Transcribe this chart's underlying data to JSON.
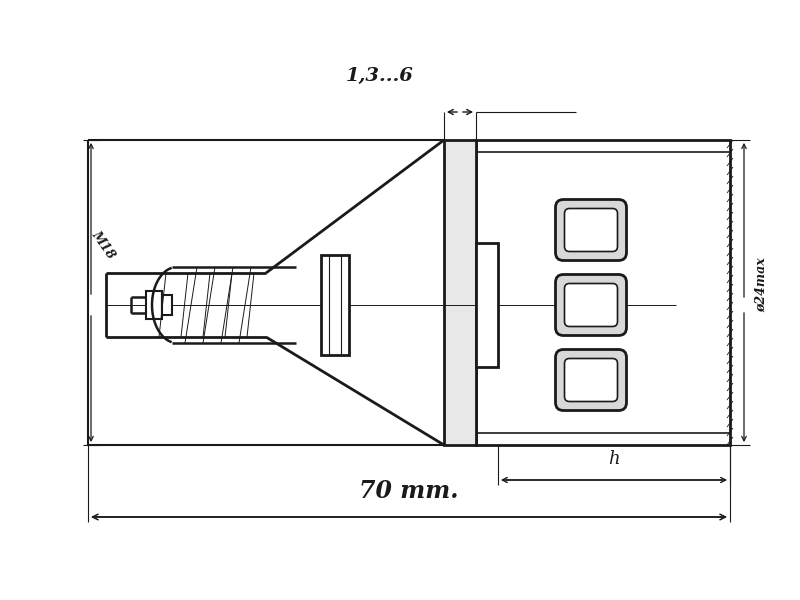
{
  "bg_color": "#ffffff",
  "line_color": "#1a1a1a",
  "fig_width": 8.0,
  "fig_height": 6.0,
  "dim_13_6": "1,3...6",
  "dim_70": "70 mm.",
  "dim_h": "h",
  "dim_m18": "M18",
  "dim_phi24": "ø24max"
}
